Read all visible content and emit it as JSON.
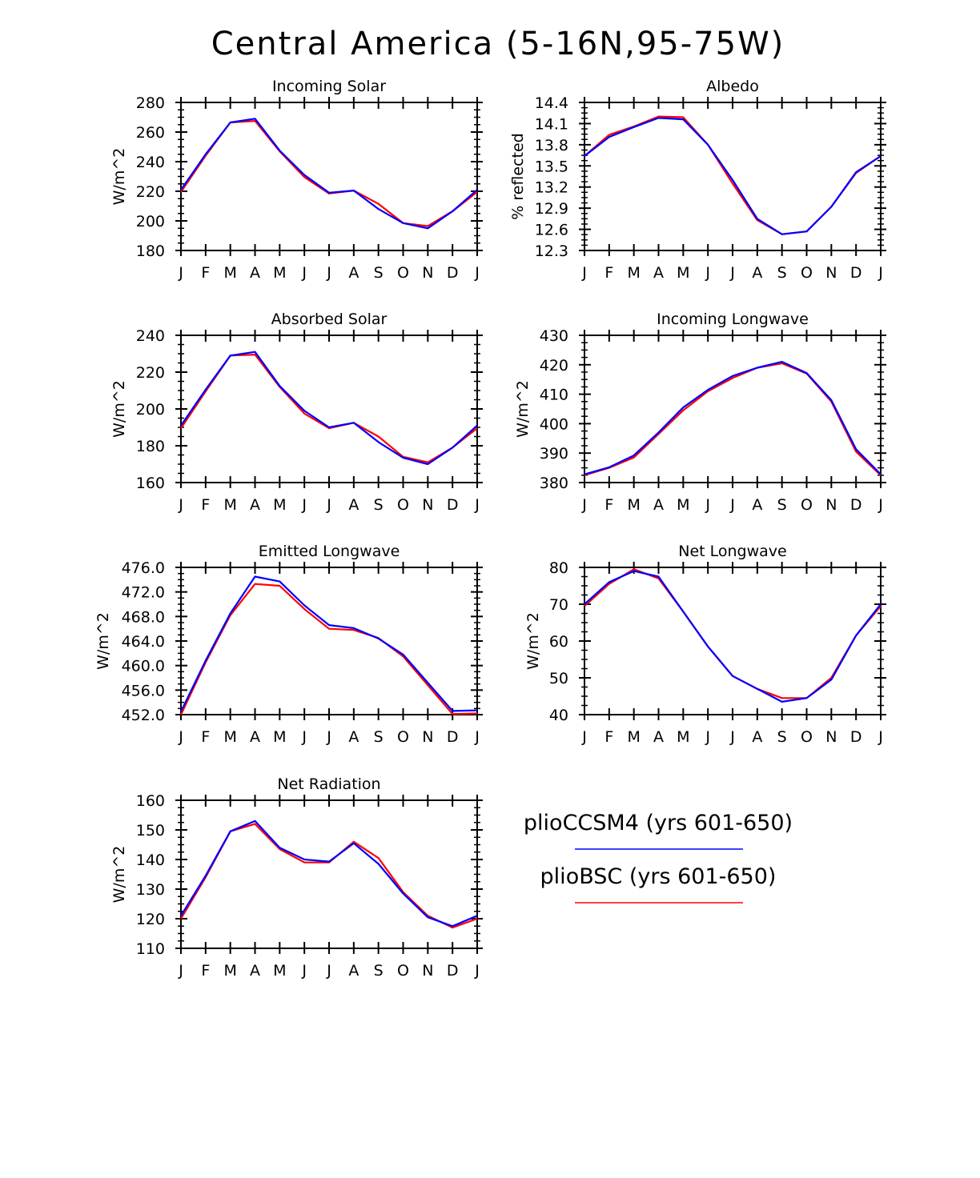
{
  "title": "Central America (5-16N,95-75W)",
  "months": [
    "J",
    "F",
    "M",
    "A",
    "M",
    "J",
    "J",
    "A",
    "S",
    "O",
    "N",
    "D",
    "J"
  ],
  "colors": {
    "pliocCSM4": "#0000ff",
    "plioBSC": "#ff0000"
  },
  "legend": [
    {
      "label": "plioCCSM4 (yrs 601-650)",
      "color": "#0000ff"
    },
    {
      "label": "plioBSC (yrs 601-650)",
      "color": "#ff0000"
    }
  ],
  "chart_data": [
    {
      "type": "line",
      "title": "Incoming Solar",
      "ylabel": "W/m^2",
      "ylim": [
        180,
        280
      ],
      "yticks": [
        "180",
        "200",
        "220",
        "240",
        "260",
        "280"
      ],
      "x": [
        "J",
        "F",
        "M",
        "A",
        "M",
        "J",
        "J",
        "A",
        "S",
        "O",
        "N",
        "D",
        "J"
      ],
      "series": [
        {
          "name": "plioBSC (yrs 601-650)",
          "color": "#ff0000",
          "values": [
            219.5,
            244,
            266.5,
            267.5,
            247,
            229.5,
            218.5,
            220.5,
            211.5,
            198.5,
            196.5,
            206.5,
            219.5
          ]
        },
        {
          "name": "plioCCSM4 (yrs 601-650)",
          "color": "#0000ff",
          "values": [
            221,
            245,
            266.5,
            269,
            247.5,
            231,
            219,
            220.5,
            208,
            198.5,
            195,
            206.5,
            221
          ]
        }
      ]
    },
    {
      "type": "line",
      "title": "Albedo",
      "ylabel": "% reflected",
      "ylim": [
        12.3,
        14.4
      ],
      "yticks": [
        "12.3",
        "12.6",
        "12.9",
        "13.2",
        "13.5",
        "13.8",
        "14.1",
        "14.4"
      ],
      "x": [
        "J",
        "F",
        "M",
        "A",
        "M",
        "J",
        "J",
        "A",
        "S",
        "O",
        "N",
        "D",
        "J"
      ],
      "series": [
        {
          "name": "plioBSC (yrs 601-650)",
          "color": "#ff0000",
          "values": [
            13.64,
            13.94,
            14.06,
            14.2,
            14.19,
            13.8,
            13.25,
            12.73,
            12.53,
            12.57,
            12.92,
            13.4,
            13.64
          ]
        },
        {
          "name": "plioCCSM4 (yrs 601-650)",
          "color": "#0000ff",
          "values": [
            13.64,
            13.91,
            14.05,
            14.18,
            14.16,
            13.8,
            13.3,
            12.75,
            12.53,
            12.57,
            12.92,
            13.41,
            13.64
          ]
        }
      ]
    },
    {
      "type": "line",
      "title": "Absorbed Solar",
      "ylabel": "W/m^2",
      "ylim": [
        160,
        240
      ],
      "yticks": [
        "160",
        "180",
        "200",
        "220",
        "240"
      ],
      "x": [
        "J",
        "F",
        "M",
        "A",
        "M",
        "J",
        "J",
        "A",
        "S",
        "O",
        "N",
        "D",
        "J"
      ],
      "series": [
        {
          "name": "plioBSC (yrs 601-650)",
          "color": "#ff0000",
          "values": [
            189.5,
            209.5,
            229,
            229.5,
            212,
            197.5,
            189.5,
            192.5,
            185,
            174,
            171,
            179,
            189.5
          ]
        },
        {
          "name": "plioCCSM4 (yrs 601-650)",
          "color": "#0000ff",
          "values": [
            191,
            210.5,
            229,
            231,
            212.5,
            199,
            190,
            192.5,
            182,
            173.5,
            170,
            179,
            191
          ]
        }
      ]
    },
    {
      "type": "line",
      "title": "Incoming Longwave",
      "ylabel": "W/m^2",
      "ylim": [
        380,
        430
      ],
      "yticks": [
        "380",
        "390",
        "400",
        "410",
        "420",
        "430"
      ],
      "x": [
        "J",
        "F",
        "M",
        "A",
        "M",
        "J",
        "J",
        "A",
        "S",
        "O",
        "N",
        "D",
        "J"
      ],
      "series": [
        {
          "name": "plioBSC (yrs 601-650)",
          "color": "#ff0000",
          "values": [
            382.5,
            385,
            388.5,
            396.5,
            404.5,
            411,
            415.5,
            419,
            420.5,
            417,
            407.5,
            390.5,
            382.5
          ]
        },
        {
          "name": "plioCCSM4 (yrs 601-650)",
          "color": "#0000ff",
          "values": [
            382.8,
            385.2,
            389.2,
            397,
            405.5,
            411.5,
            416.2,
            419,
            421,
            417.2,
            408,
            391.3,
            382.8
          ]
        }
      ]
    },
    {
      "type": "line",
      "title": "Emitted Longwave",
      "ylabel": "W/m^2",
      "ylim": [
        452,
        476
      ],
      "yticks": [
        "452.0",
        "456.0",
        "460.0",
        "464.0",
        "468.0",
        "472.0",
        "476.0"
      ],
      "x": [
        "J",
        "F",
        "M",
        "A",
        "M",
        "J",
        "J",
        "A",
        "S",
        "O",
        "N",
        "D",
        "J"
      ],
      "series": [
        {
          "name": "plioBSC (yrs 601-650)",
          "color": "#ff0000",
          "values": [
            452,
            460.5,
            468.2,
            473.3,
            473,
            469.2,
            466,
            465.8,
            464.5,
            461.5,
            456.8,
            452.1,
            452.2
          ]
        },
        {
          "name": "plioCCSM4 (yrs 601-650)",
          "color": "#0000ff",
          "values": [
            452.5,
            460.8,
            468.5,
            474.5,
            473.7,
            469.8,
            466.6,
            466.1,
            464.4,
            461.8,
            457.2,
            452.6,
            452.7
          ]
        }
      ]
    },
    {
      "type": "line",
      "title": "Net Longwave",
      "ylabel": "W/m^2",
      "ylim": [
        40,
        80
      ],
      "yticks": [
        "40",
        "50",
        "60",
        "70",
        "80"
      ],
      "x": [
        "J",
        "F",
        "M",
        "A",
        "M",
        "J",
        "J",
        "A",
        "S",
        "O",
        "N",
        "D",
        "J"
      ],
      "series": [
        {
          "name": "plioBSC (yrs 601-650)",
          "color": "#ff0000",
          "values": [
            69.5,
            75.5,
            79.5,
            77,
            68,
            58.5,
            50.5,
            47,
            44.5,
            44.5,
            50,
            61.5,
            69.5
          ]
        },
        {
          "name": "plioCCSM4 (yrs 601-650)",
          "color": "#0000ff",
          "values": [
            70,
            76,
            79,
            77.5,
            68,
            58.5,
            50.5,
            47,
            43.5,
            44.5,
            49.5,
            61.5,
            70
          ]
        }
      ]
    },
    {
      "type": "line",
      "title": "Net Radiation",
      "ylabel": "W/m^2",
      "ylim": [
        110,
        160
      ],
      "yticks": [
        "110",
        "120",
        "130",
        "140",
        "150",
        "160"
      ],
      "x": [
        "J",
        "F",
        "M",
        "A",
        "M",
        "J",
        "J",
        "A",
        "S",
        "O",
        "N",
        "D",
        "J"
      ],
      "series": [
        {
          "name": "plioBSC (yrs 601-650)",
          "color": "#ff0000",
          "values": [
            120,
            134,
            149.5,
            152,
            143.5,
            139,
            139,
            146,
            140.5,
            129,
            121,
            117,
            120
          ]
        },
        {
          "name": "plioCCSM4 (yrs 601-650)",
          "color": "#0000ff",
          "values": [
            121,
            134.5,
            149.5,
            153,
            144,
            140,
            139.3,
            145.5,
            138.5,
            128.5,
            120.5,
            117.5,
            121
          ]
        }
      ]
    }
  ]
}
